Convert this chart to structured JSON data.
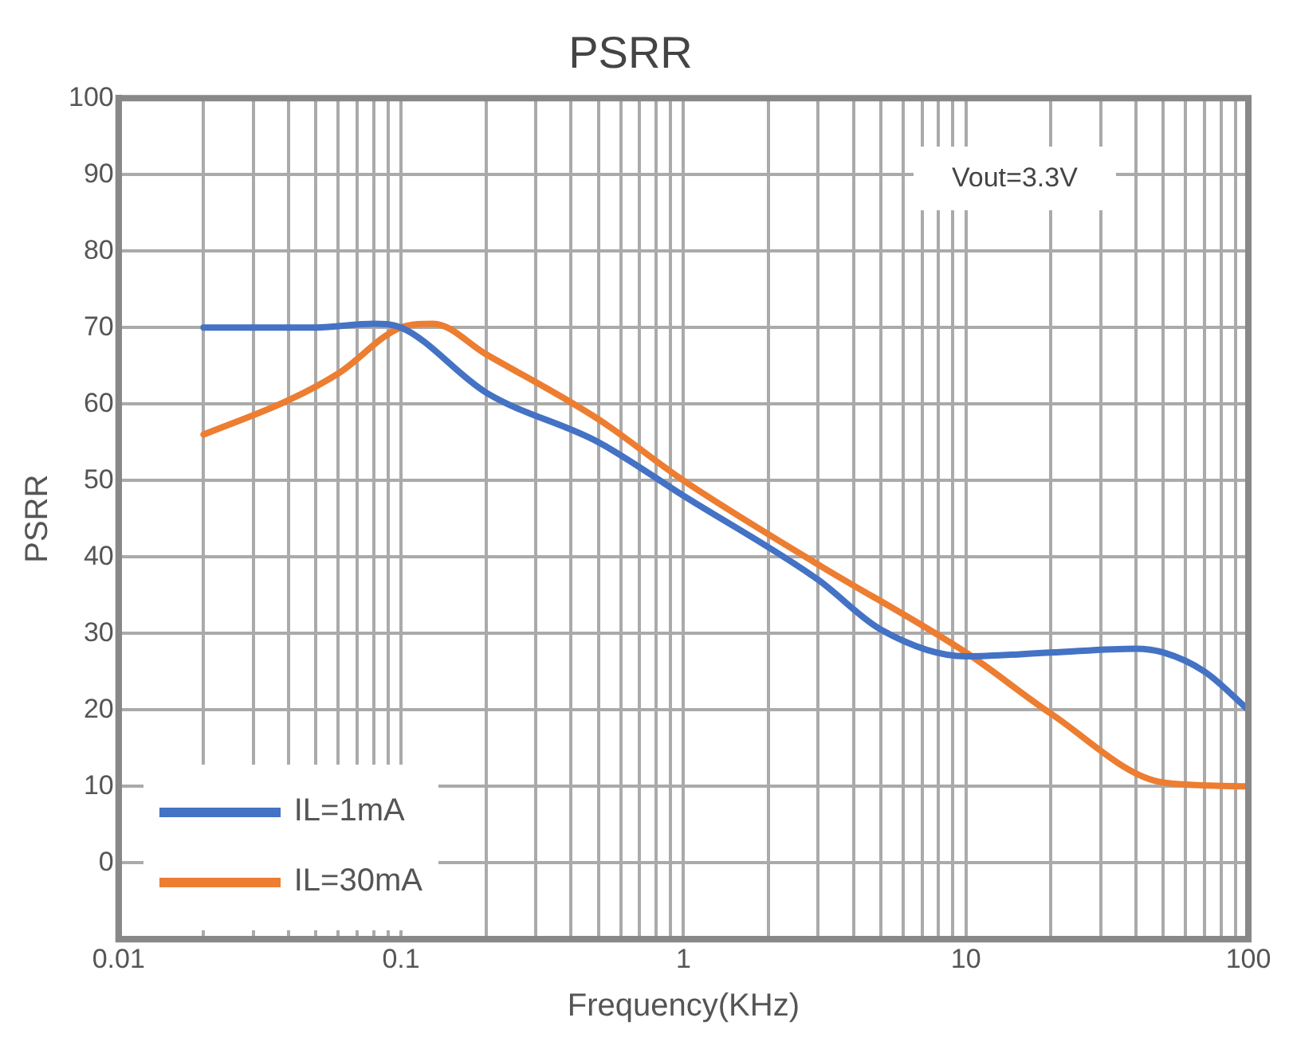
{
  "chart_data": {
    "type": "line",
    "title": "PSRR",
    "xlabel": "Frequency(KHz)",
    "ylabel": "PSRR",
    "log": "x",
    "grid": true,
    "legend": "bottom left",
    "marker": "none",
    "line_style": "solid",
    "xlim": [
      0.01,
      100
    ],
    "xticks": [
      0.01,
      {
        "value": 0.02,
        "label": null
      },
      {
        "value": 0.03,
        "label": null
      },
      {
        "value": 0.04,
        "label": null
      },
      {
        "value": 0.05,
        "label": null
      },
      {
        "value": 0.06,
        "label": null
      },
      {
        "value": 0.07,
        "label": null
      },
      {
        "value": 0.08,
        "label": null
      },
      {
        "value": 0.09,
        "label": null
      },
      0.1,
      {
        "value": 0.2,
        "label": null
      },
      {
        "value": 0.3,
        "label": null
      },
      {
        "value": 0.4,
        "label": null
      },
      {
        "value": 0.5,
        "label": null
      },
      {
        "value": 0.6,
        "label": null
      },
      {
        "value": 0.7,
        "label": null
      },
      {
        "value": 0.8,
        "label": null
      },
      {
        "value": 0.9,
        "label": null
      },
      1,
      {
        "value": 2,
        "label": null
      },
      {
        "value": 3,
        "label": null
      },
      {
        "value": 4,
        "label": null
      },
      {
        "value": 5,
        "label": null
      },
      {
        "value": 6,
        "label": null
      },
      {
        "value": 7,
        "label": null
      },
      {
        "value": 8,
        "label": null
      },
      {
        "value": 9,
        "label": null
      },
      10,
      {
        "value": 20,
        "label": null
      },
      {
        "value": 30,
        "label": null
      },
      {
        "value": 40,
        "label": null
      },
      {
        "value": 50,
        "label": null
      },
      {
        "value": 60,
        "label": null
      },
      {
        "value": 70,
        "label": null
      },
      {
        "value": 80,
        "label": null
      },
      {
        "value": 90,
        "label": null
      },
      100
    ],
    "ylim": [
      -10,
      100
    ],
    "yticks": [
      0,
      10,
      20,
      30,
      40,
      50,
      60,
      70,
      80,
      90,
      100
    ],
    "annotations": [
      "Vout=3.3V"
    ],
    "series": [
      {
        "name": "IL=1mA",
        "color": "#4472c4",
        "x": [
          0.02,
          0.05,
          0.08,
          0.1,
          0.2,
          0.5,
          1,
          3,
          5,
          10,
          20,
          40,
          50,
          70,
          100
        ],
        "values": [
          70,
          70,
          70.5,
          70,
          61.5,
          55,
          48,
          37,
          30.5,
          27,
          27.5,
          28,
          27.5,
          25,
          20
        ]
      },
      {
        "name": "IL=30mA",
        "color": "#ed7d31",
        "x": [
          0.02,
          0.04,
          0.06,
          0.1,
          0.13,
          0.2,
          0.5,
          1,
          3,
          10,
          20,
          50,
          100
        ],
        "values": [
          56,
          60.5,
          64,
          70,
          70.5,
          66.5,
          58,
          50,
          39,
          27.5,
          19.5,
          10.5,
          10
        ]
      }
    ]
  }
}
